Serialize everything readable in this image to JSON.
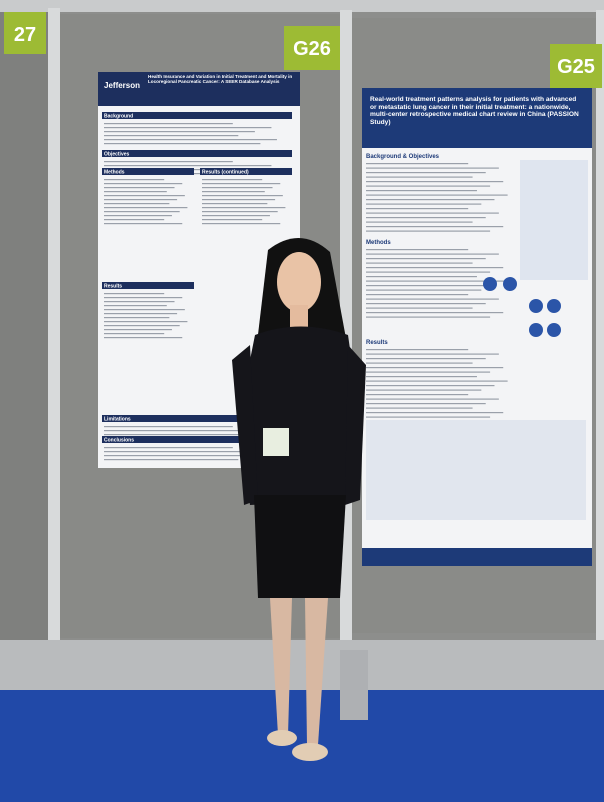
{
  "booth_labels": [
    "27",
    "G26",
    "G25"
  ],
  "left_poster": {
    "institution": "Jefferson",
    "title": "Health Insurance and Variation in Initial Treatment and Mortality in Locoregional Pancreatic Cancer: A SEER Database Analysis",
    "sections": [
      "Background",
      "Objectives",
      "Methods",
      "Results",
      "Limitations",
      "Conclusions",
      "Results (continued)"
    ]
  },
  "right_poster": {
    "title": "Real-world treatment patterns analysis for patients with advanced or metastatic lung cancer in their initial treatment: a nationwide, multi-center retrospective medical chart review in China (PASSION Study)",
    "sections": [
      "Background & Objectives",
      "Methods",
      "Results"
    ]
  }
}
